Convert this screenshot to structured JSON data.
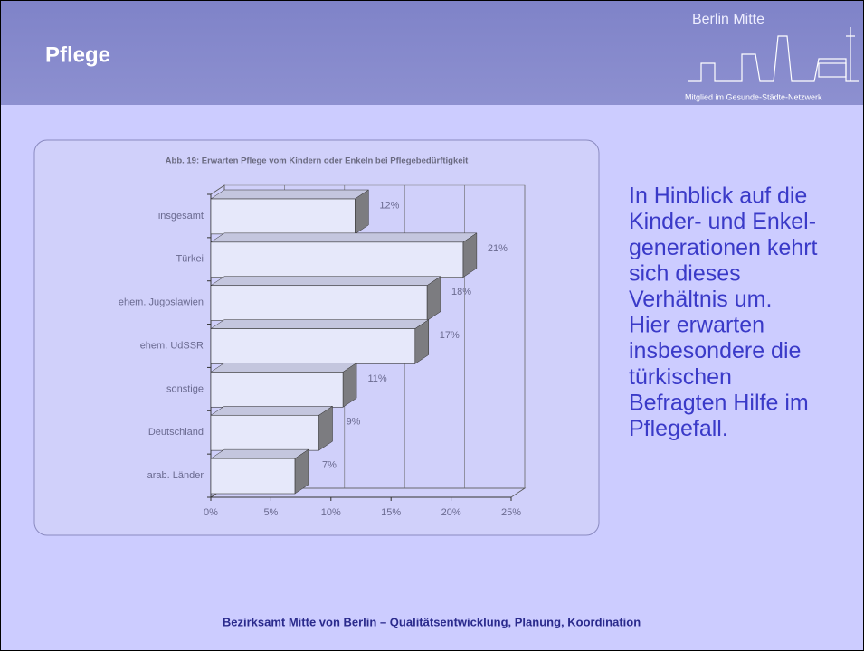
{
  "header": {
    "title": "Pflege",
    "logo_title": "Berlin Mitte",
    "logo_subtitle": "Mitglied im Gesunde-Städte-Netzwerk"
  },
  "chart_data": {
    "type": "bar",
    "orientation": "horizontal",
    "title": "Abb. 19: Erwarten Pflege vom Kindern oder Enkeln bei Pflegebedürftigkeit",
    "categories": [
      "insgesamt",
      "Türkei",
      "ehem. Jugoslawien",
      "ehem. UdSSR",
      "sonstige",
      "Deutschland",
      "arab. Länder"
    ],
    "values": [
      12,
      21,
      18,
      17,
      11,
      9,
      7
    ],
    "value_labels": [
      "12%",
      "21%",
      "18%",
      "17%",
      "11%",
      "9%",
      "7%"
    ],
    "color": "#e6e8fa",
    "xlim": [
      0,
      25
    ],
    "xticks": [
      {
        "value": 0,
        "label": "0%"
      },
      {
        "value": 5,
        "label": "5%"
      },
      {
        "value": 10,
        "label": "10%"
      },
      {
        "value": 15,
        "label": "15%"
      },
      {
        "value": 20,
        "label": "20%"
      },
      {
        "value": 25,
        "label": "25%"
      }
    ],
    "grid": true
  },
  "text": {
    "lines": [
      "In Hinblick auf die",
      "Kinder- und Enkel-",
      "generationen kehrt",
      "sich dieses",
      "Verhältnis um.",
      "Hier erwarten",
      "insbesondere die",
      "türkischen",
      "Befragten Hilfe im",
      "Pflegefall."
    ]
  },
  "footer": "Bezirksamt Mitte von Berlin – Qualitätsentwicklung, Planung, Koordination"
}
